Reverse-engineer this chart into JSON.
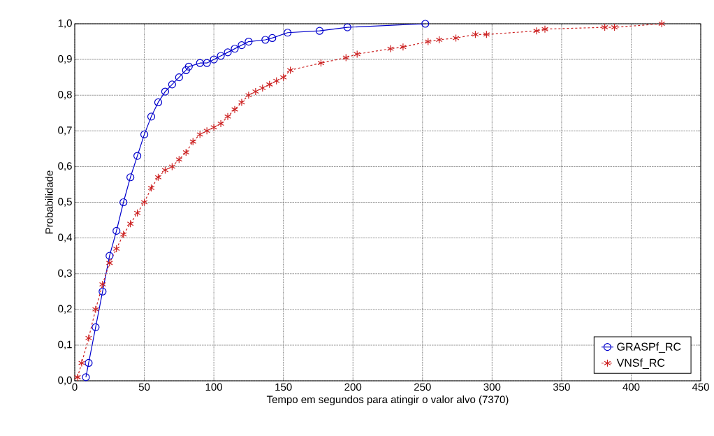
{
  "chart_data": {
    "type": "line",
    "xlabel": "Tempo em segundos para atingir o valor alvo (7370)",
    "ylabel": "Probabilidade",
    "xlim": [
      0,
      450
    ],
    "xticks": [
      0,
      50,
      100,
      150,
      200,
      250,
      300,
      350,
      400,
      450
    ],
    "ylim": [
      0,
      1
    ],
    "yticks": [
      {
        "value": 0,
        "label": "0,0"
      },
      {
        "value": 0.1,
        "label": "0,1"
      },
      {
        "value": 0.2,
        "label": "0,2"
      },
      {
        "value": 0.3,
        "label": "0,3"
      },
      {
        "value": 0.4,
        "label": "0,4"
      },
      {
        "value": 0.5,
        "label": "0,5"
      },
      {
        "value": 0.6,
        "label": "0,6"
      },
      {
        "value": 0.7,
        "label": "0,7"
      },
      {
        "value": 0.8,
        "label": "0,8"
      },
      {
        "value": 0.9,
        "label": "0,9"
      },
      {
        "value": 1.0,
        "label": "1,0"
      }
    ],
    "grid": true,
    "legend": "bottom right",
    "series": [
      {
        "name": "GRASPf_RC",
        "color": "#0000cc",
        "marker": "circle",
        "line_style": "solid",
        "x": [
          8,
          10,
          15,
          20,
          25,
          30,
          35,
          40,
          45,
          50,
          55,
          60,
          65,
          70,
          75,
          80,
          82,
          90,
          95,
          100,
          105,
          110,
          115,
          120,
          125,
          137,
          142,
          153,
          176,
          196,
          252
        ],
        "values": [
          0.01,
          0.05,
          0.15,
          0.25,
          0.35,
          0.42,
          0.5,
          0.57,
          0.63,
          0.69,
          0.74,
          0.78,
          0.81,
          0.83,
          0.85,
          0.87,
          0.88,
          0.89,
          0.89,
          0.9,
          0.91,
          0.92,
          0.93,
          0.94,
          0.95,
          0.955,
          0.96,
          0.975,
          0.98,
          0.99,
          1.0
        ]
      },
      {
        "name": "VNSf_RC",
        "color": "#cc2222",
        "marker": "cross",
        "line_style": "dashed",
        "x": [
          2,
          5,
          10,
          15,
          20,
          25,
          30,
          35,
          40,
          45,
          50,
          55,
          60,
          65,
          70,
          75,
          80,
          85,
          90,
          95,
          100,
          105,
          110,
          115,
          120,
          125,
          130,
          135,
          140,
          145,
          150,
          155,
          177,
          195,
          203,
          227,
          236,
          254,
          262,
          274,
          288,
          296,
          332,
          338,
          381,
          388,
          422
        ],
        "values": [
          0.01,
          0.05,
          0.12,
          0.2,
          0.27,
          0.33,
          0.37,
          0.41,
          0.44,
          0.47,
          0.5,
          0.54,
          0.57,
          0.59,
          0.6,
          0.62,
          0.64,
          0.67,
          0.69,
          0.7,
          0.71,
          0.72,
          0.74,
          0.76,
          0.78,
          0.8,
          0.81,
          0.82,
          0.83,
          0.84,
          0.85,
          0.87,
          0.89,
          0.905,
          0.915,
          0.93,
          0.935,
          0.95,
          0.955,
          0.96,
          0.97,
          0.97,
          0.98,
          0.985,
          0.99,
          0.99,
          1.0
        ]
      }
    ]
  }
}
